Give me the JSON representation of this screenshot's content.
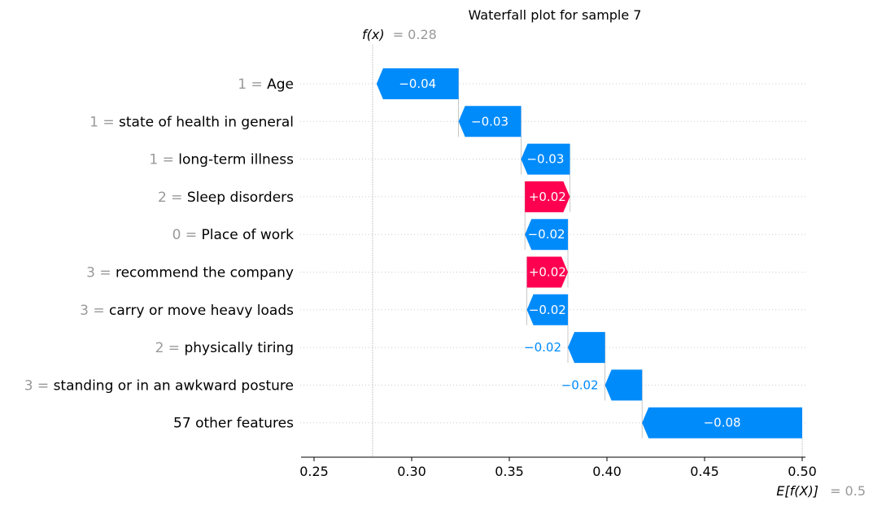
{
  "title": "Waterfall plot for sample 7",
  "fx": {
    "label": "f(x)",
    "value_text": "= 0.28"
  },
  "efx": {
    "label": "E[f(X)]",
    "value_text": "= 0.5"
  },
  "colors": {
    "positive": "#ff0051",
    "negative": "#008bfb",
    "muted": "#999999"
  },
  "chart_data": {
    "type": "bar",
    "subtype": "waterfall",
    "title": "Waterfall plot for sample 7",
    "base_value": 0.5,
    "output_value": 0.28,
    "xlim": [
      0.245,
      0.505
    ],
    "xticks": [
      0.25,
      0.3,
      0.35,
      0.4,
      0.45,
      0.5
    ],
    "xtick_labels": [
      "0.25",
      "0.30",
      "0.35",
      "0.40",
      "0.45",
      "0.50"
    ],
    "rows": [
      {
        "value": "1",
        "feature": "Age",
        "start": 0.324,
        "end": 0.282,
        "label": "−0.04"
      },
      {
        "value": "1",
        "feature": "state of health in general",
        "start": 0.356,
        "end": 0.324,
        "label": "−0.03"
      },
      {
        "value": "1",
        "feature": "long-term illness",
        "start": 0.381,
        "end": 0.356,
        "label": "−0.03"
      },
      {
        "value": "2",
        "feature": "Sleep disorders",
        "start": 0.358,
        "end": 0.381,
        "label": "+0.02"
      },
      {
        "value": "0",
        "feature": "Place of work",
        "start": 0.38,
        "end": 0.358,
        "label": "−0.02"
      },
      {
        "value": "3",
        "feature": "recommend the company",
        "start": 0.359,
        "end": 0.38,
        "label": "+0.02"
      },
      {
        "value": "3",
        "feature": "carry or move heavy loads",
        "start": 0.38,
        "end": 0.359,
        "label": "−0.02"
      },
      {
        "value": "2",
        "feature": "physically tiring",
        "start": 0.399,
        "end": 0.38,
        "label": "−0.02"
      },
      {
        "value": "3",
        "feature": "standing or in an awkward posture",
        "start": 0.418,
        "end": 0.399,
        "label": "−0.02"
      },
      {
        "value": "",
        "feature": "57 other features",
        "start": 0.5,
        "end": 0.418,
        "label": "−0.08"
      }
    ]
  }
}
